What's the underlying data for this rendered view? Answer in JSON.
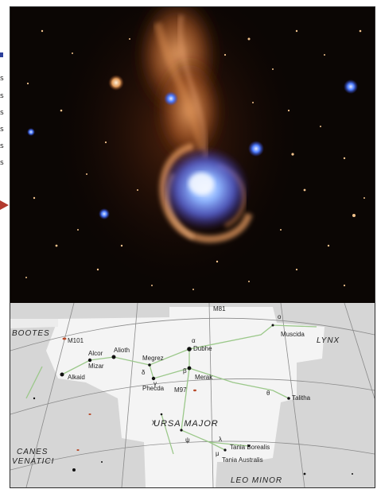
{
  "sidebar": {
    "letters": [
      "s",
      "s",
      "s",
      "s",
      "s",
      "s"
    ]
  },
  "starmap": {
    "constellations": {
      "bootes": "BOOTES",
      "ursa_major": "URSA MAJOR",
      "canes_line1": "CANES",
      "canes_line2": "VENATICI",
      "lynx": "LYNX",
      "leo_minor": "LEO MINOR"
    },
    "stars": {
      "m81": "M81",
      "m101": "M101",
      "alcor": "Alcor",
      "mizar": "Mizar",
      "alkaid": "Alkaid",
      "alioth": "Alioth",
      "megrez": "Megrez",
      "dubhe": "Dubhe",
      "merak": "Merak",
      "phecda": "Phecda",
      "m97": "M97",
      "muscida": "Muscida",
      "talitha": "Talitha",
      "tania_borealis": "Tania Borealis",
      "tania_australis": "Tania Australis"
    },
    "greek": {
      "alpha": "α",
      "beta": "β",
      "gamma": "γ",
      "delta": "δ",
      "chi": "χ",
      "psi": "ψ",
      "lambda": "λ",
      "mu": "μ",
      "omicron": "ο",
      "theta": "θ"
    }
  }
}
